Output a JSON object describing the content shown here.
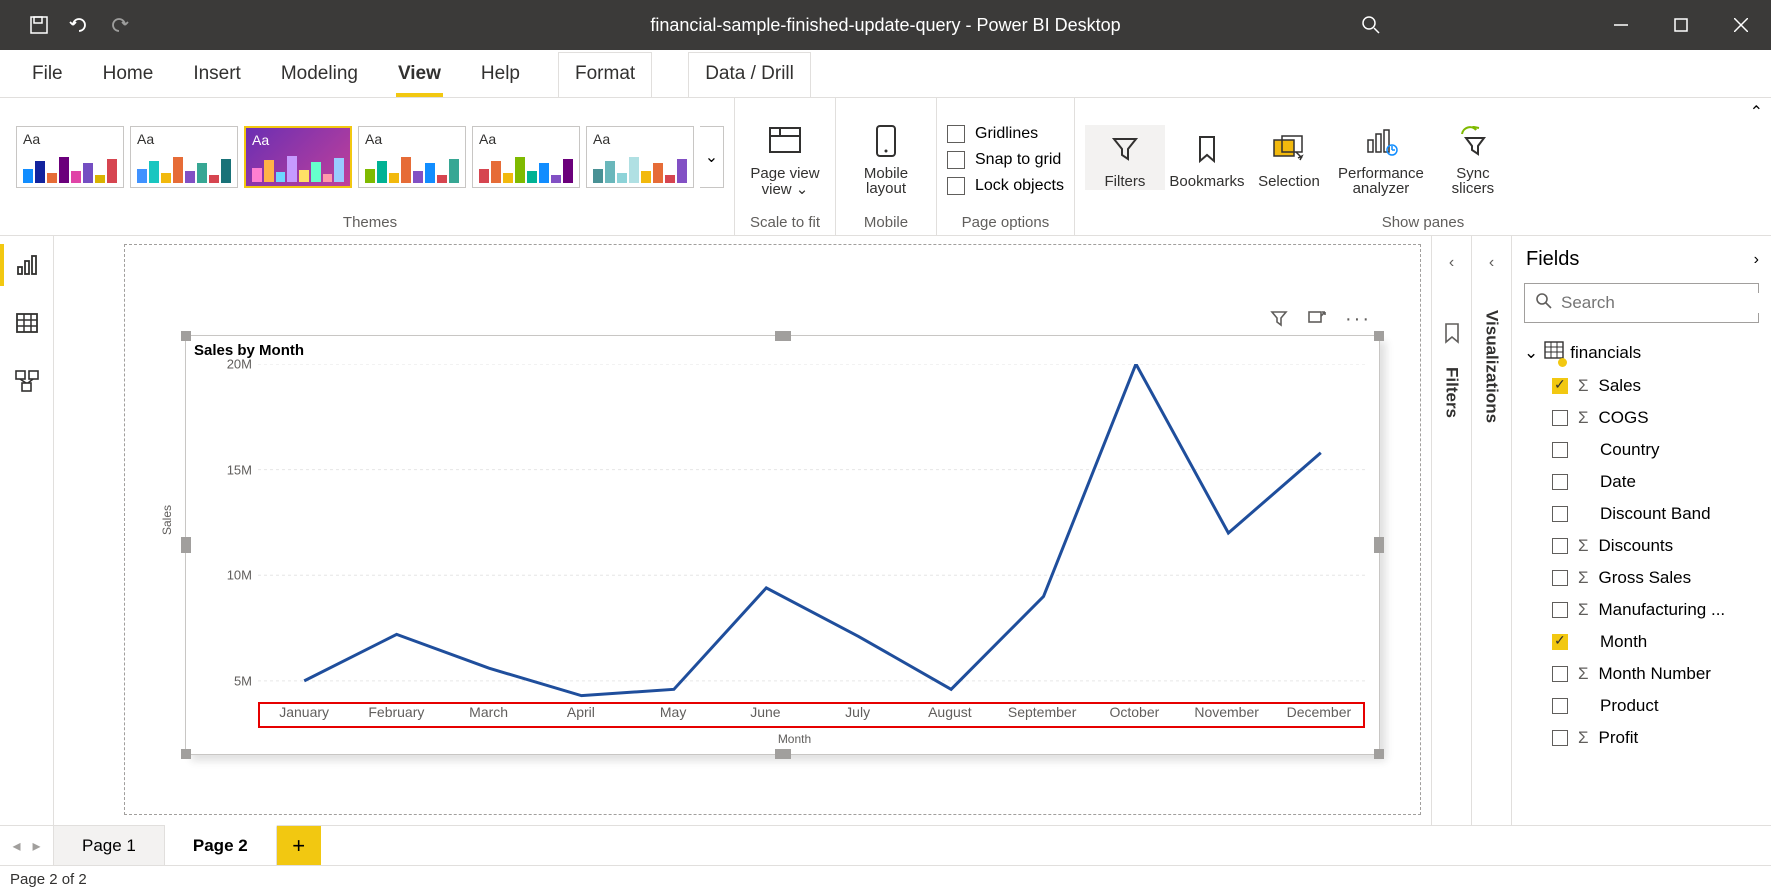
{
  "titlebar": {
    "title": "financial-sample-finished-update-query - Power BI Desktop"
  },
  "menu": {
    "file": "File",
    "home": "Home",
    "insert": "Insert",
    "modeling": "Modeling",
    "view": "View",
    "help": "Help",
    "format": "Format",
    "datadrill": "Data / Drill"
  },
  "ribbon": {
    "themes_label": "Themes",
    "scale_label": "Scale to fit",
    "mobile_label": "Mobile",
    "pageopts_label": "Page options",
    "showpanes_label": "Show panes",
    "page_view": "Page view",
    "page_view_dd": "⌄",
    "mobile_layout": "Mobile layout",
    "gridlines": "Gridlines",
    "snap": "Snap to grid",
    "lock": "Lock objects",
    "filters": "Filters",
    "bookmarks": "Bookmarks",
    "selection": "Selection",
    "perf1": "Performance",
    "perf2": "analyzer",
    "sync1": "Sync",
    "sync2": "slicers",
    "themes": [
      {
        "aa_color": "#323130",
        "bg": "#ffffff",
        "bars": [
          "#118dff",
          "#12239e",
          "#e66c37",
          "#6b007b",
          "#e044a7",
          "#744ec2",
          "#d9b300",
          "#d64550"
        ]
      },
      {
        "aa_color": "#323130",
        "bg": "#ffffff",
        "bars": [
          "#4092ff",
          "#19c6c0",
          "#f2b90d",
          "#e66c37",
          "#8250c4",
          "#37a794",
          "#d64550",
          "#197278"
        ]
      },
      {
        "aa_color": "#ffffff",
        "bg": "linear-gradient(135deg,#6b2fb3,#c0409a)",
        "bars": [
          "#ff7fd1",
          "#ffb347",
          "#6bd6ff",
          "#c69bff",
          "#ffe066",
          "#66ffcc",
          "#ff99aa",
          "#99ccff"
        ]
      },
      {
        "aa_color": "#323130",
        "bg": "#ffffff",
        "bars": [
          "#7fba00",
          "#00b294",
          "#f2b90d",
          "#e66c37",
          "#8250c4",
          "#118dff",
          "#d64550",
          "#37a794"
        ]
      },
      {
        "aa_color": "#323130",
        "bg": "#ffffff",
        "bars": [
          "#d64550",
          "#e66c37",
          "#f2b90d",
          "#7fba00",
          "#00b294",
          "#118dff",
          "#8250c4",
          "#6b007b"
        ]
      },
      {
        "aa_color": "#323130",
        "bg": "#ffffff",
        "bars": [
          "#499195",
          "#6ab7bb",
          "#8dd3d8",
          "#b0e0e3",
          "#f2b90d",
          "#e66c37",
          "#d64550",
          "#8250c4"
        ]
      }
    ],
    "theme_selected_index": 2
  },
  "collapsed_panes": {
    "filters": "Filters",
    "visualizations": "Visualizations"
  },
  "fields": {
    "title": "Fields",
    "search_placeholder": "Search",
    "table": "financials",
    "items": [
      {
        "label": "Sales",
        "checked": true,
        "sigma": true
      },
      {
        "label": "COGS",
        "checked": false,
        "sigma": true
      },
      {
        "label": "Country",
        "checked": false,
        "sigma": false
      },
      {
        "label": "Date",
        "checked": false,
        "sigma": false
      },
      {
        "label": "Discount Band",
        "checked": false,
        "sigma": false
      },
      {
        "label": "Discounts",
        "checked": false,
        "sigma": true
      },
      {
        "label": "Gross Sales",
        "checked": false,
        "sigma": true
      },
      {
        "label": "Manufacturing ...",
        "checked": false,
        "sigma": true
      },
      {
        "label": "Month",
        "checked": true,
        "sigma": false
      },
      {
        "label": "Month Number",
        "checked": false,
        "sigma": true
      },
      {
        "label": "Product",
        "checked": false,
        "sigma": false
      },
      {
        "label": "Profit",
        "checked": false,
        "sigma": true
      }
    ]
  },
  "pagetabs": {
    "pages": [
      "Page 1",
      "Page 2"
    ],
    "active_index": 1,
    "add": "+"
  },
  "status": {
    "text": "Page 2 of 2"
  },
  "chart": {
    "title": "Sales by Month",
    "ylabel": "Sales",
    "xlabel": "Month",
    "type": "line",
    "line_color": "#1f4e9c",
    "line_width": 3,
    "grid_color": "#e6e6e6",
    "background_color": "#ffffff",
    "title_fontsize": 15,
    "axis_label_fontsize": 12,
    "tick_fontsize": 13,
    "ylim": [
      4000000,
      20000000
    ],
    "yticks": [
      {
        "v": 5000000,
        "label": "5M"
      },
      {
        "v": 10000000,
        "label": "10M"
      },
      {
        "v": 15000000,
        "label": "15M"
      },
      {
        "v": 20000000,
        "label": "20M"
      }
    ],
    "categories": [
      "January",
      "February",
      "March",
      "April",
      "May",
      "June",
      "July",
      "August",
      "September",
      "October",
      "November",
      "December"
    ],
    "values": [
      5000000,
      7200000,
      5600000,
      4300000,
      4600000,
      9400000,
      7100000,
      4600000,
      9000000,
      20000000,
      12000000,
      15800000
    ],
    "xaxis_highlight_color": "#e60000"
  }
}
